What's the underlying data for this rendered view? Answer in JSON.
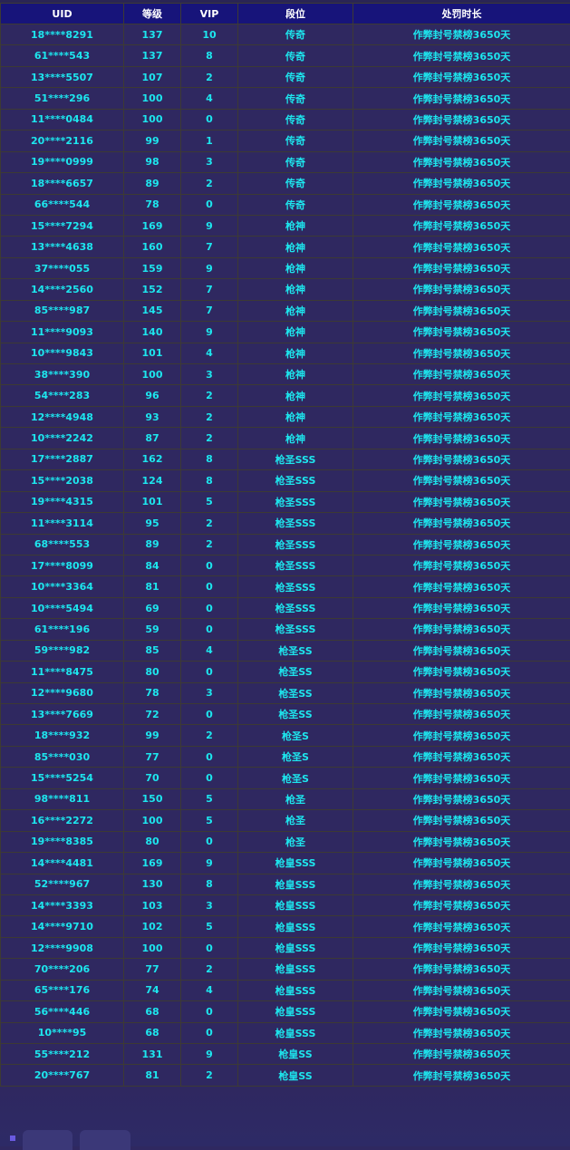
{
  "table": {
    "headers": [
      "UID",
      "等级",
      "VIP",
      "段位",
      "处罚时长"
    ],
    "rows": [
      [
        "18****8291",
        "137",
        "10",
        "传奇",
        "作弊封号禁榜3650天"
      ],
      [
        "61****543",
        "137",
        "8",
        "传奇",
        "作弊封号禁榜3650天"
      ],
      [
        "13****5507",
        "107",
        "2",
        "传奇",
        "作弊封号禁榜3650天"
      ],
      [
        "51****296",
        "100",
        "4",
        "传奇",
        "作弊封号禁榜3650天"
      ],
      [
        "11****0484",
        "100",
        "0",
        "传奇",
        "作弊封号禁榜3650天"
      ],
      [
        "20****2116",
        "99",
        "1",
        "传奇",
        "作弊封号禁榜3650天"
      ],
      [
        "19****0999",
        "98",
        "3",
        "传奇",
        "作弊封号禁榜3650天"
      ],
      [
        "18****6657",
        "89",
        "2",
        "传奇",
        "作弊封号禁榜3650天"
      ],
      [
        "66****544",
        "78",
        "0",
        "传奇",
        "作弊封号禁榜3650天"
      ],
      [
        "15****7294",
        "169",
        "9",
        "枪神",
        "作弊封号禁榜3650天"
      ],
      [
        "13****4638",
        "160",
        "7",
        "枪神",
        "作弊封号禁榜3650天"
      ],
      [
        "37****055",
        "159",
        "9",
        "枪神",
        "作弊封号禁榜3650天"
      ],
      [
        "14****2560",
        "152",
        "7",
        "枪神",
        "作弊封号禁榜3650天"
      ],
      [
        "85****987",
        "145",
        "7",
        "枪神",
        "作弊封号禁榜3650天"
      ],
      [
        "11****9093",
        "140",
        "9",
        "枪神",
        "作弊封号禁榜3650天"
      ],
      [
        "10****9843",
        "101",
        "4",
        "枪神",
        "作弊封号禁榜3650天"
      ],
      [
        "38****390",
        "100",
        "3",
        "枪神",
        "作弊封号禁榜3650天"
      ],
      [
        "54****283",
        "96",
        "2",
        "枪神",
        "作弊封号禁榜3650天"
      ],
      [
        "12****4948",
        "93",
        "2",
        "枪神",
        "作弊封号禁榜3650天"
      ],
      [
        "10****2242",
        "87",
        "2",
        "枪神",
        "作弊封号禁榜3650天"
      ],
      [
        "17****2887",
        "162",
        "8",
        "枪圣SSS",
        "作弊封号禁榜3650天"
      ],
      [
        "15****2038",
        "124",
        "8",
        "枪圣SSS",
        "作弊封号禁榜3650天"
      ],
      [
        "19****4315",
        "101",
        "5",
        "枪圣SSS",
        "作弊封号禁榜3650天"
      ],
      [
        "11****3114",
        "95",
        "2",
        "枪圣SSS",
        "作弊封号禁榜3650天"
      ],
      [
        "68****553",
        "89",
        "2",
        "枪圣SSS",
        "作弊封号禁榜3650天"
      ],
      [
        "17****8099",
        "84",
        "0",
        "枪圣SSS",
        "作弊封号禁榜3650天"
      ],
      [
        "10****3364",
        "81",
        "0",
        "枪圣SSS",
        "作弊封号禁榜3650天"
      ],
      [
        "10****5494",
        "69",
        "0",
        "枪圣SSS",
        "作弊封号禁榜3650天"
      ],
      [
        "61****196",
        "59",
        "0",
        "枪圣SSS",
        "作弊封号禁榜3650天"
      ],
      [
        "59****982",
        "85",
        "4",
        "枪圣SS",
        "作弊封号禁榜3650天"
      ],
      [
        "11****8475",
        "80",
        "0",
        "枪圣SS",
        "作弊封号禁榜3650天"
      ],
      [
        "12****9680",
        "78",
        "3",
        "枪圣SS",
        "作弊封号禁榜3650天"
      ],
      [
        "13****7669",
        "72",
        "0",
        "枪圣SS",
        "作弊封号禁榜3650天"
      ],
      [
        "18****932",
        "99",
        "2",
        "枪圣S",
        "作弊封号禁榜3650天"
      ],
      [
        "85****030",
        "77",
        "0",
        "枪圣S",
        "作弊封号禁榜3650天"
      ],
      [
        "15****5254",
        "70",
        "0",
        "枪圣S",
        "作弊封号禁榜3650天"
      ],
      [
        "98****811",
        "150",
        "5",
        "枪圣",
        "作弊封号禁榜3650天"
      ],
      [
        "16****2272",
        "100",
        "5",
        "枪圣",
        "作弊封号禁榜3650天"
      ],
      [
        "19****8385",
        "80",
        "0",
        "枪圣",
        "作弊封号禁榜3650天"
      ],
      [
        "14****4481",
        "169",
        "9",
        "枪皇SSS",
        "作弊封号禁榜3650天"
      ],
      [
        "52****967",
        "130",
        "8",
        "枪皇SSS",
        "作弊封号禁榜3650天"
      ],
      [
        "14****3393",
        "103",
        "3",
        "枪皇SSS",
        "作弊封号禁榜3650天"
      ],
      [
        "14****9710",
        "102",
        "5",
        "枪皇SSS",
        "作弊封号禁榜3650天"
      ],
      [
        "12****9908",
        "100",
        "0",
        "枪皇SSS",
        "作弊封号禁榜3650天"
      ],
      [
        "70****206",
        "77",
        "2",
        "枪皇SSS",
        "作弊封号禁榜3650天"
      ],
      [
        "65****176",
        "74",
        "4",
        "枪皇SSS",
        "作弊封号禁榜3650天"
      ],
      [
        "56****446",
        "68",
        "0",
        "枪皇SSS",
        "作弊封号禁榜3650天"
      ],
      [
        "10****95",
        "68",
        "0",
        "枪皇SSS",
        "作弊封号禁榜3650天"
      ],
      [
        "55****212",
        "131",
        "9",
        "枪皇SS",
        "作弊封号禁榜3650天"
      ],
      [
        "20****767",
        "81",
        "2",
        "枪皇SS",
        "作弊封号禁榜3650天"
      ]
    ]
  },
  "colors": {
    "header_bg": "#17147a",
    "body_bg": "#2f2860",
    "text": "#1de6ee",
    "header_text": "#ffffff"
  }
}
